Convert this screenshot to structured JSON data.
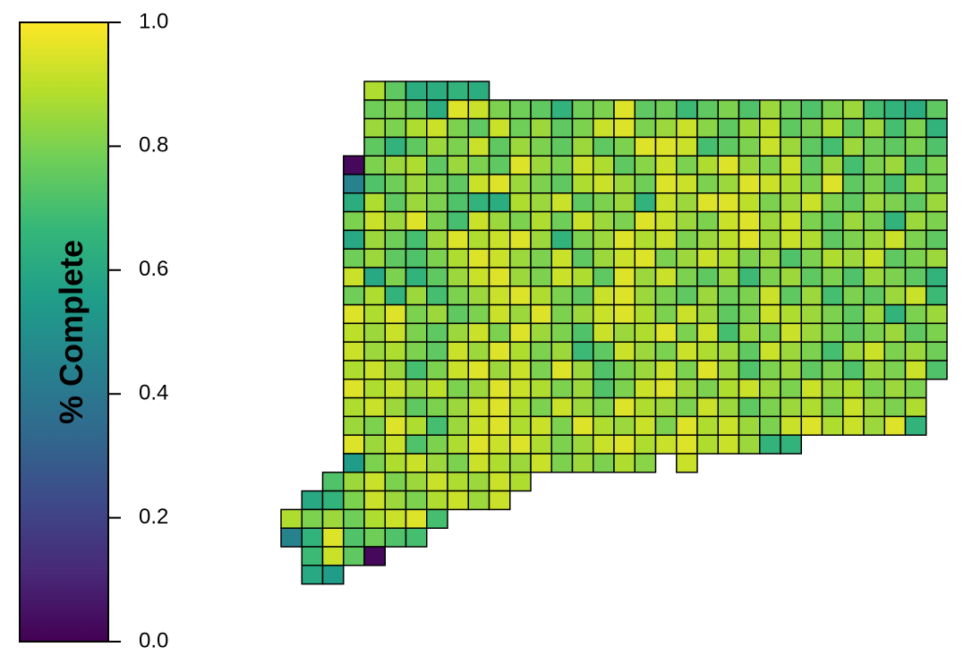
{
  "chart_data": {
    "type": "grid-map",
    "colorbar_title": "% Complete",
    "ylim": [
      0,
      1
    ],
    "yticks": [
      {
        "value": 0,
        "label": "0.0"
      },
      0.2,
      0.4,
      0.6,
      0.8,
      {
        "value": 1,
        "label": "1.0"
      }
    ],
    "colormap": [
      "#440154",
      "#482878",
      "#3e4989",
      "#31688e",
      "#26828e",
      "#1f9e89",
      "#35b779",
      "#6ece58",
      "#b5de2b",
      "#fde725"
    ],
    "cells": [
      [
        null,
        null,
        null,
        null,
        0.88,
        0.75,
        0.62,
        0.62,
        0.65,
        0.62,
        null,
        null,
        null,
        null,
        null,
        null,
        null,
        null,
        null,
        null,
        null,
        null,
        null,
        null,
        null,
        null,
        null,
        null,
        null,
        null,
        null,
        null
      ],
      [
        null,
        null,
        null,
        null,
        0.78,
        0.8,
        0.75,
        0.62,
        0.95,
        0.92,
        0.8,
        0.78,
        0.75,
        0.65,
        0.78,
        0.8,
        0.95,
        0.75,
        0.78,
        0.68,
        0.75,
        0.8,
        0.72,
        0.85,
        0.78,
        0.72,
        0.8,
        0.85,
        0.7,
        0.65,
        0.62,
        0.75
      ],
      [
        null,
        null,
        null,
        null,
        0.85,
        0.8,
        0.88,
        0.92,
        0.8,
        0.75,
        0.92,
        0.78,
        0.85,
        0.75,
        0.8,
        0.92,
        0.95,
        0.8,
        0.85,
        0.92,
        0.82,
        0.75,
        0.85,
        0.9,
        0.75,
        0.8,
        0.88,
        0.75,
        0.85,
        0.7,
        0.8,
        0.65
      ],
      [
        null,
        null,
        null,
        null,
        0.75,
        0.65,
        0.75,
        0.85,
        0.8,
        0.92,
        0.75,
        0.85,
        0.8,
        0.75,
        0.85,
        0.75,
        0.8,
        0.95,
        0.95,
        0.92,
        0.7,
        0.75,
        0.8,
        0.92,
        0.85,
        0.75,
        0.7,
        0.85,
        0.78,
        0.75,
        0.8,
        0.72
      ],
      [
        null,
        null,
        null,
        0.02,
        0.8,
        0.85,
        0.88,
        0.75,
        0.85,
        0.8,
        0.75,
        0.95,
        0.85,
        0.8,
        0.92,
        0.88,
        0.75,
        0.82,
        0.92,
        0.8,
        0.88,
        0.95,
        0.85,
        0.8,
        0.92,
        0.75,
        0.85,
        0.7,
        0.8,
        0.85,
        0.72,
        0.8
      ],
      [
        null,
        null,
        null,
        0.45,
        0.72,
        0.78,
        0.85,
        0.8,
        0.75,
        0.92,
        0.95,
        0.85,
        0.8,
        0.75,
        0.88,
        0.92,
        0.85,
        0.78,
        0.95,
        0.92,
        0.8,
        0.85,
        0.95,
        0.92,
        0.88,
        0.8,
        0.95,
        0.75,
        0.8,
        0.7,
        0.85,
        0.78
      ],
      [
        null,
        null,
        null,
        0.62,
        0.88,
        0.75,
        0.85,
        0.8,
        0.72,
        0.65,
        0.62,
        0.88,
        0.85,
        0.92,
        0.75,
        0.8,
        0.85,
        0.65,
        0.92,
        0.85,
        0.95,
        0.95,
        0.9,
        0.8,
        0.85,
        0.92,
        0.8,
        0.75,
        0.85,
        0.8,
        0.75,
        0.85
      ],
      [
        null,
        null,
        null,
        0.8,
        0.92,
        0.85,
        0.95,
        0.8,
        0.7,
        0.92,
        0.85,
        0.8,
        0.88,
        0.78,
        0.92,
        0.85,
        0.8,
        0.95,
        0.92,
        0.85,
        0.8,
        0.92,
        0.95,
        0.85,
        0.92,
        0.8,
        0.75,
        0.85,
        0.8,
        0.65,
        0.85,
        0.8
      ],
      [
        null,
        null,
        null,
        0.6,
        0.85,
        0.78,
        0.7,
        0.85,
        0.95,
        0.88,
        0.92,
        0.95,
        0.85,
        0.65,
        0.8,
        0.85,
        0.95,
        0.88,
        0.92,
        0.8,
        0.85,
        0.9,
        0.95,
        0.85,
        0.92,
        0.88,
        0.75,
        0.8,
        0.85,
        0.92,
        0.8,
        0.75
      ],
      [
        null,
        null,
        null,
        0.78,
        0.85,
        0.75,
        0.72,
        0.8,
        0.88,
        0.95,
        0.92,
        0.85,
        0.8,
        0.92,
        0.75,
        0.85,
        0.92,
        0.95,
        0.8,
        0.85,
        0.92,
        0.88,
        0.8,
        0.85,
        0.72,
        0.8,
        0.88,
        0.85,
        0.92,
        0.75,
        0.8,
        0.85
      ],
      [
        null,
        null,
        null,
        0.92,
        0.6,
        0.8,
        0.65,
        0.75,
        0.85,
        0.92,
        0.95,
        0.85,
        0.8,
        0.92,
        0.88,
        0.75,
        0.95,
        0.85,
        0.92,
        0.8,
        0.75,
        0.85,
        0.68,
        0.8,
        0.85,
        0.75,
        0.8,
        0.72,
        0.85,
        0.8,
        0.75,
        0.65
      ],
      [
        null,
        null,
        null,
        0.78,
        0.88,
        0.65,
        0.85,
        0.7,
        0.8,
        0.85,
        0.92,
        0.95,
        0.88,
        0.8,
        0.75,
        0.92,
        0.95,
        0.85,
        0.8,
        0.75,
        0.85,
        0.78,
        0.8,
        0.92,
        0.75,
        0.85,
        0.7,
        0.8,
        0.75,
        0.85,
        0.92,
        0.68
      ],
      [
        null,
        null,
        null,
        0.95,
        0.88,
        0.95,
        0.8,
        0.85,
        0.75,
        0.8,
        0.92,
        0.85,
        0.95,
        0.8,
        0.85,
        0.92,
        0.95,
        0.88,
        0.8,
        0.92,
        0.85,
        0.75,
        0.8,
        0.92,
        0.88,
        0.85,
        0.8,
        0.75,
        0.85,
        0.65,
        0.8,
        0.85
      ],
      [
        null,
        null,
        null,
        0.9,
        0.85,
        0.92,
        0.8,
        0.75,
        0.85,
        0.92,
        0.8,
        0.95,
        0.85,
        0.8,
        0.72,
        0.92,
        0.85,
        0.88,
        0.95,
        0.8,
        0.92,
        0.7,
        0.85,
        0.8,
        0.92,
        0.85,
        0.8,
        0.75,
        0.8,
        0.85,
        0.75,
        0.8
      ],
      [
        null,
        null,
        null,
        0.92,
        0.85,
        0.88,
        0.8,
        0.75,
        0.92,
        0.85,
        0.95,
        0.88,
        0.8,
        0.85,
        0.68,
        0.75,
        0.92,
        0.85,
        0.8,
        0.92,
        0.88,
        0.85,
        0.75,
        0.92,
        0.85,
        0.8,
        0.7,
        0.85,
        0.92,
        0.8,
        0.85,
        0.78
      ],
      [
        null,
        null,
        null,
        0.88,
        0.92,
        0.85,
        0.7,
        0.8,
        0.92,
        0.95,
        0.85,
        0.92,
        0.8,
        0.95,
        0.85,
        0.72,
        0.8,
        0.85,
        0.92,
        0.8,
        0.95,
        0.85,
        0.72,
        0.8,
        0.85,
        0.75,
        0.8,
        0.72,
        0.85,
        0.8,
        0.92,
        0.72
      ],
      [
        null,
        null,
        null,
        0.95,
        0.88,
        0.92,
        0.85,
        0.9,
        0.8,
        0.85,
        0.95,
        0.92,
        0.88,
        0.8,
        0.85,
        0.72,
        0.8,
        0.92,
        0.95,
        0.85,
        0.8,
        0.88,
        0.92,
        0.85,
        0.8,
        0.92,
        0.85,
        0.88,
        0.8,
        0.85,
        0.8,
        null
      ],
      [
        null,
        null,
        null,
        0.88,
        0.92,
        0.85,
        0.75,
        0.8,
        0.85,
        0.92,
        0.95,
        0.88,
        0.8,
        0.92,
        0.85,
        0.8,
        0.95,
        0.88,
        0.85,
        0.8,
        0.92,
        0.85,
        0.75,
        0.8,
        0.85,
        0.88,
        0.8,
        0.92,
        0.85,
        0.8,
        0.88,
        null
      ],
      [
        null,
        null,
        null,
        0.85,
        0.8,
        0.95,
        0.88,
        0.7,
        0.85,
        0.92,
        0.95,
        0.88,
        0.92,
        0.8,
        0.95,
        0.88,
        0.85,
        0.92,
        0.8,
        0.95,
        0.88,
        0.92,
        0.85,
        0.8,
        0.92,
        0.95,
        0.88,
        0.92,
        0.85,
        0.95,
        0.65,
        null
      ],
      [
        null,
        null,
        null,
        0.95,
        0.85,
        0.92,
        0.72,
        0.8,
        0.88,
        0.95,
        0.92,
        0.95,
        0.88,
        0.8,
        0.85,
        0.92,
        0.95,
        0.88,
        0.92,
        0.95,
        0.88,
        0.92,
        0.85,
        0.65,
        0.65,
        null,
        null,
        null,
        null,
        null,
        null,
        null
      ],
      [
        null,
        null,
        null,
        0.55,
        0.8,
        0.88,
        0.92,
        0.85,
        0.8,
        0.92,
        0.88,
        0.85,
        0.92,
        0.8,
        0.85,
        0.8,
        0.88,
        0.82,
        null,
        0.92,
        null,
        null,
        null,
        null,
        null,
        null,
        null,
        null,
        null,
        null,
        null,
        null
      ],
      [
        null,
        null,
        0.72,
        0.85,
        0.92,
        0.8,
        0.85,
        0.92,
        0.88,
        0.85,
        0.92,
        0.88,
        null,
        null,
        null,
        null,
        null,
        null,
        null,
        null,
        null,
        null,
        null,
        null,
        null,
        null,
        null,
        null,
        null,
        null,
        null,
        null
      ],
      [
        null,
        0.6,
        0.65,
        0.8,
        0.92,
        0.85,
        0.8,
        0.88,
        0.92,
        0.85,
        0.92,
        null,
        null,
        null,
        null,
        null,
        null,
        null,
        null,
        null,
        null,
        null,
        null,
        null,
        null,
        null,
        null,
        null,
        null,
        null,
        null,
        null
      ],
      [
        0.88,
        0.8,
        0.85,
        0.78,
        0.88,
        0.92,
        0.95,
        0.7,
        null,
        null,
        null,
        null,
        null,
        null,
        null,
        null,
        null,
        null,
        null,
        null,
        null,
        null,
        null,
        null,
        null,
        null,
        null,
        null,
        null,
        null,
        null,
        null
      ],
      [
        0.45,
        0.65,
        0.95,
        0.72,
        0.78,
        0.72,
        0.7,
        null,
        null,
        null,
        null,
        null,
        null,
        null,
        null,
        null,
        null,
        null,
        null,
        null,
        null,
        null,
        null,
        null,
        null,
        null,
        null,
        null,
        null,
        null,
        null,
        null
      ],
      [
        null,
        0.68,
        0.92,
        0.75,
        0.02,
        null,
        null,
        null,
        null,
        null,
        null,
        null,
        null,
        null,
        null,
        null,
        null,
        null,
        null,
        null,
        null,
        null,
        null,
        null,
        null,
        null,
        null,
        null,
        null,
        null,
        null,
        null
      ],
      [
        null,
        0.6,
        0.55,
        null,
        null,
        null,
        null,
        null,
        null,
        null,
        null,
        null,
        null,
        null,
        null,
        null,
        null,
        null,
        null,
        null,
        null,
        null,
        null,
        null,
        null,
        null,
        null,
        null,
        null,
        null,
        null,
        null
      ]
    ]
  }
}
